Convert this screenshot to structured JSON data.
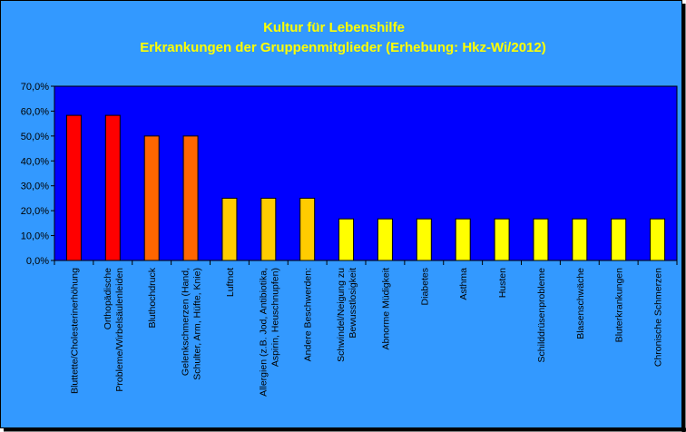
{
  "chart_data": {
    "type": "bar",
    "title": "Kultur für Lebenshilfe",
    "subtitle": "Erkrankungen der Gruppenmitglieder (Erhebung: Hkz-Wi/2012)",
    "xlabel": "",
    "ylabel": "",
    "ylim": [
      0,
      70
    ],
    "yticks": [
      "0,0%",
      "10,0%",
      "20,0%",
      "30,0%",
      "40,0%",
      "50,0%",
      "60,0%",
      "70,0%"
    ],
    "grid": false,
    "legend": "none",
    "categories": [
      [
        "Bluttette/Cholesterinerhöhung"
      ],
      [
        "Orthopädische",
        "Probleme/Wirbelsäulenleiden"
      ],
      [
        "Bluthochdruck"
      ],
      [
        "Gelenkschmerzen (Hand,",
        "Schulter, Arm, Hüfte, Knie)"
      ],
      [
        "Luftnot"
      ],
      [
        "Allergien (z.B. Jod, Antibiotika,",
        "Aspirin, Heuschnupfen)"
      ],
      [
        "Andere Beschwerden:"
      ],
      [
        "Schwindel/Neigung zu",
        "Bewusstlosigkeit"
      ],
      [
        "Abnorme Müdigkeit"
      ],
      [
        "Diabetes"
      ],
      [
        "Asthma"
      ],
      [
        "Husten"
      ],
      [
        "Schilddrüsenprobleme"
      ],
      [
        "Blasenschwäche"
      ],
      [
        "Bluterkrankungen"
      ],
      [
        "Chronische Schmerzen"
      ]
    ],
    "values": [
      58.3,
      58.3,
      50.0,
      50.0,
      25.0,
      25.0,
      25.0,
      16.7,
      16.7,
      16.7,
      16.7,
      16.7,
      16.7,
      16.7,
      16.7,
      16.7
    ],
    "bar_colors": [
      "#ff0000",
      "#ff0000",
      "#ff6600",
      "#ff6600",
      "#ffcc00",
      "#ffcc00",
      "#ffcc00",
      "#ffff00",
      "#ffff00",
      "#ffff00",
      "#ffff00",
      "#ffff00",
      "#ffff00",
      "#ffff00",
      "#ffff00",
      "#ffff00"
    ],
    "colors": {
      "chart_background": "#3399ff",
      "plot_background": "#0000ff",
      "title": "#ffff00",
      "frame": "#000000"
    }
  }
}
